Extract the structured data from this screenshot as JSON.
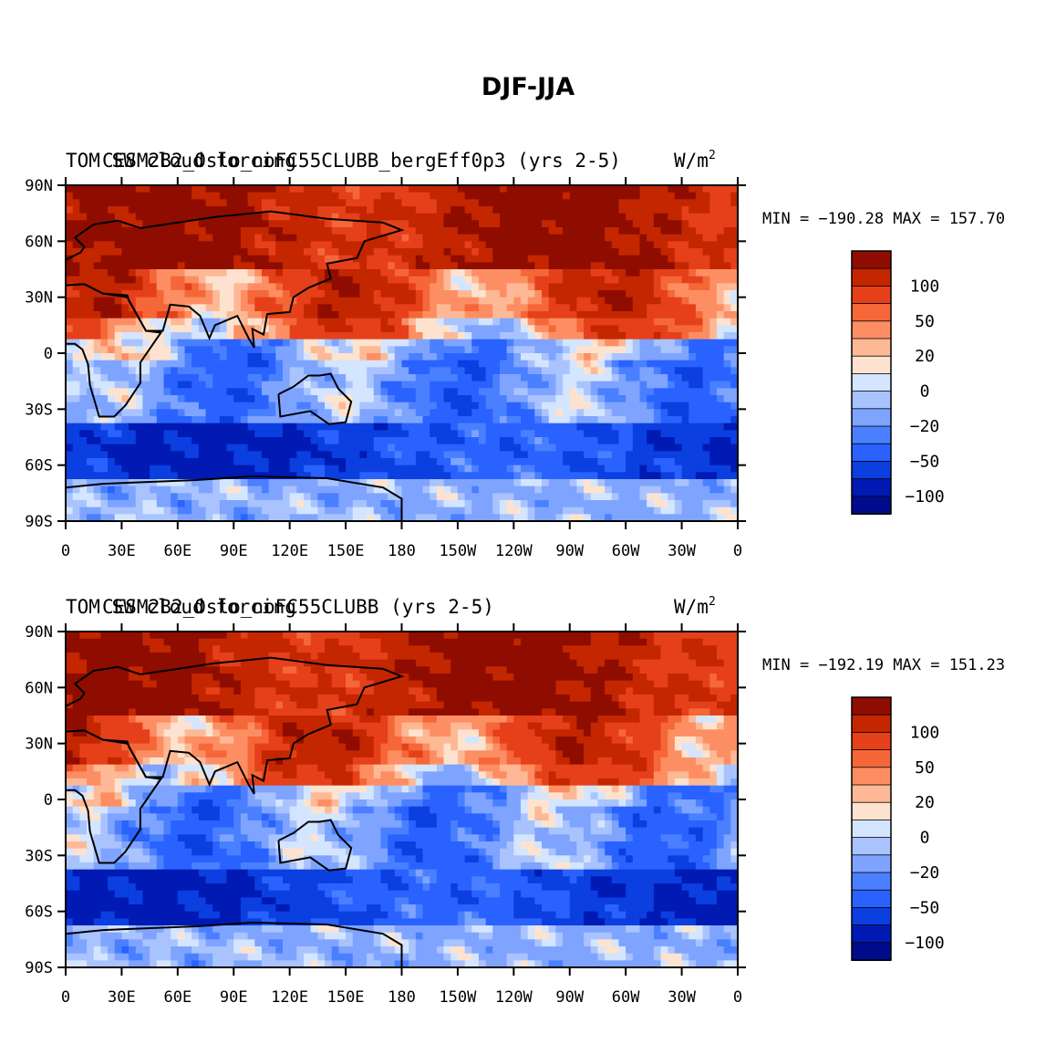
{
  "figure": {
    "title": "DJF-JJA",
    "units": "W/m",
    "units_superscript": "2"
  },
  "chart_data": [
    {
      "type": "heatmap",
      "case_name": "CESM2B2_Oslo_noFC55CLUBB_bergEff0p3 (yrs 2-5)",
      "variable_name": "TOM SW cloud forcing",
      "min_label": "MIN = −190.28",
      "max_label": "MAX = 157.70",
      "min": -190.28,
      "max": 157.7,
      "x_ticks": [
        "0",
        "30E",
        "60E",
        "90E",
        "120E",
        "150E",
        "180",
        "150W",
        "120W",
        "90W",
        "60W",
        "30W",
        "0"
      ],
      "y_ticks": [
        "90N",
        "60N",
        "30N",
        "0",
        "30S",
        "60S",
        "90S"
      ],
      "xlim": [
        0,
        360
      ],
      "ylim": [
        -90,
        90
      ],
      "colorbar": {
        "levels": [
          -150,
          -100,
          -75,
          -50,
          -40,
          -20,
          -10,
          0,
          10,
          20,
          40,
          50,
          75,
          100,
          150
        ],
        "tick_labels": [
          "100",
          "50",
          "20",
          "0",
          "−20",
          "−50",
          "−100"
        ],
        "colors": [
          "#000c8c",
          "#001ab3",
          "#0b3fe0",
          "#2a62ff",
          "#4a80ff",
          "#7ea4ff",
          "#a9c3ff",
          "#d4e5ff",
          "#fde3cf",
          "#fdb995",
          "#fd8e63",
          "#f56738",
          "#e5401a",
          "#c42600",
          "#8f0d00"
        ]
      }
    },
    {
      "type": "heatmap",
      "case_name": "CESM2B2_Oslo_noFC55CLUBB (yrs 2-5)",
      "variable_name": "TOM SW cloud forcing",
      "min_label": "MIN = −192.19",
      "max_label": "MAX = 151.23",
      "min": -192.19,
      "max": 151.23,
      "x_ticks": [
        "0",
        "30E",
        "60E",
        "90E",
        "120E",
        "150E",
        "180",
        "150W",
        "120W",
        "90W",
        "60W",
        "30W",
        "0"
      ],
      "y_ticks": [
        "90N",
        "60N",
        "30N",
        "0",
        "30S",
        "60S",
        "90S"
      ],
      "xlim": [
        0,
        360
      ],
      "ylim": [
        -90,
        90
      ],
      "colorbar": {
        "levels": [
          -150,
          -100,
          -75,
          -50,
          -40,
          -20,
          -10,
          0,
          10,
          20,
          40,
          50,
          75,
          100,
          150
        ],
        "tick_labels": [
          "100",
          "50",
          "20",
          "0",
          "−20",
          "−50",
          "−100"
        ],
        "colors": [
          "#000c8c",
          "#001ab3",
          "#0b3fe0",
          "#2a62ff",
          "#4a80ff",
          "#7ea4ff",
          "#a9c3ff",
          "#d4e5ff",
          "#fde3cf",
          "#fdb995",
          "#fd8e63",
          "#f56738",
          "#e5401a",
          "#c42600",
          "#8f0d00"
        ]
      }
    }
  ]
}
